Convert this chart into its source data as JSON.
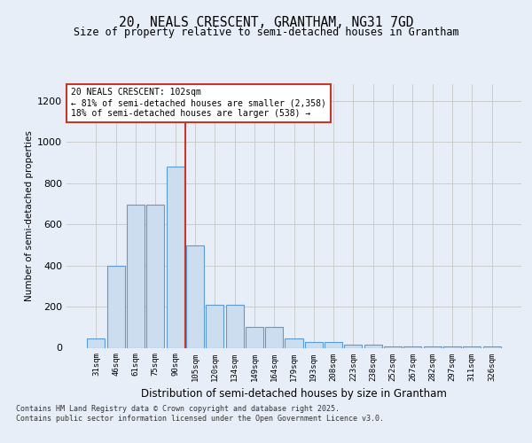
{
  "title_line1": "20, NEALS CRESCENT, GRANTHAM, NG31 7GD",
  "title_line2": "Size of property relative to semi-detached houses in Grantham",
  "xlabel": "Distribution of semi-detached houses by size in Grantham",
  "ylabel": "Number of semi-detached properties",
  "categories": [
    "31sqm",
    "46sqm",
    "61sqm",
    "75sqm",
    "90sqm",
    "105sqm",
    "120sqm",
    "134sqm",
    "149sqm",
    "164sqm",
    "179sqm",
    "193sqm",
    "208sqm",
    "223sqm",
    "238sqm",
    "252sqm",
    "267sqm",
    "282sqm",
    "297sqm",
    "311sqm",
    "326sqm"
  ],
  "values": [
    47,
    400,
    695,
    695,
    880,
    495,
    210,
    210,
    100,
    100,
    47,
    30,
    30,
    15,
    15,
    8,
    8,
    8,
    8,
    5,
    8
  ],
  "bar_color": "#ccddf0",
  "bar_edge_color": "#5b9bd5",
  "grid_color": "#cccccc",
  "vline_x": 4.5,
  "vline_color": "#c0392b",
  "annotation_box_text": "20 NEALS CRESCENT: 102sqm\n← 81% of semi-detached houses are smaller (2,358)\n18% of semi-detached houses are larger (538) →",
  "annotation_box_color": "#c0392b",
  "annotation_box_bg": "#ffffff",
  "ylim": [
    0,
    1280
  ],
  "yticks": [
    0,
    200,
    400,
    600,
    800,
    1000,
    1200
  ],
  "footnote": "Contains HM Land Registry data © Crown copyright and database right 2025.\nContains public sector information licensed under the Open Government Licence v3.0.",
  "background_color": "#e8eef8"
}
